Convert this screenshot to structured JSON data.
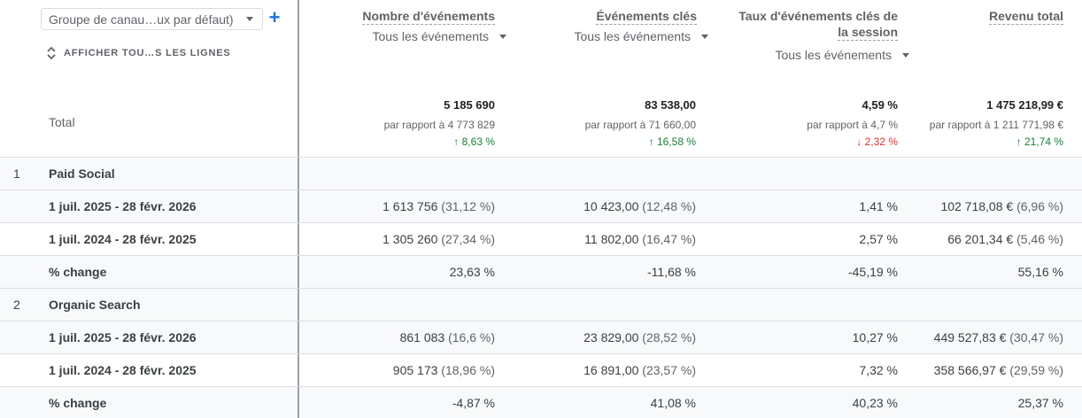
{
  "dimension": {
    "selected": "Groupe de canau…ux par défaut)",
    "show_all_label": "AFFICHER TOU…S LES LIGNES"
  },
  "metrics": [
    {
      "title": "Nombre d'événements",
      "title2": "",
      "filter": "Tous les événements"
    },
    {
      "title": "Événements clés",
      "title2": "",
      "filter": "Tous les événements"
    },
    {
      "title": "Taux d'événements clés de",
      "title2": "la session",
      "filter": "Tous les événements"
    },
    {
      "title": "Revenu total",
      "title2": "",
      "filter": ""
    }
  ],
  "total": {
    "label": "Total",
    "cells": [
      {
        "value": "5 185 690",
        "compare": "par rapport à 4 773 829",
        "delta": "↑ 8,63 %",
        "direction": "up"
      },
      {
        "value": "83 538,00",
        "compare": "par rapport à 71 660,00",
        "delta": "↑ 16,58 %",
        "direction": "up"
      },
      {
        "value": "4,59 %",
        "compare": "par rapport à 4,7 %",
        "delta": "↓ 2,32 %",
        "direction": "down"
      },
      {
        "value": "1 475 218,99 €",
        "compare": "par rapport à 1 211 771,98 €",
        "delta": "↑ 21,74 %",
        "direction": "up"
      }
    ]
  },
  "rows": [
    {
      "index": "1",
      "label": "Paid Social",
      "cells": []
    },
    {
      "index": "",
      "label": "1 juil. 2025 - 28 févr. 2026",
      "cells": [
        {
          "v": "1 613 756",
          "p": "(31,12 %)"
        },
        {
          "v": "10 423,00",
          "p": "(12,48 %)"
        },
        {
          "v": "1,41 %",
          "p": ""
        },
        {
          "v": "102 718,08 €",
          "p": "(6,96 %)"
        }
      ]
    },
    {
      "index": "",
      "label": "1 juil. 2024 - 28 févr. 2025",
      "cells": [
        {
          "v": "1 305 260",
          "p": "(27,34 %)"
        },
        {
          "v": "11 802,00",
          "p": "(16,47 %)"
        },
        {
          "v": "2,57 %",
          "p": ""
        },
        {
          "v": "66 201,34 €",
          "p": "(5,46 %)"
        }
      ]
    },
    {
      "index": "",
      "label": "% change",
      "cells": [
        {
          "v": "23,63 %",
          "p": ""
        },
        {
          "v": "-11,68 %",
          "p": ""
        },
        {
          "v": "-45,19 %",
          "p": ""
        },
        {
          "v": "55,16 %",
          "p": ""
        }
      ]
    },
    {
      "index": "2",
      "label": "Organic Search",
      "cells": []
    },
    {
      "index": "",
      "label": "1 juil. 2025 - 28 févr. 2026",
      "cells": [
        {
          "v": "861 083",
          "p": "(16,6 %)"
        },
        {
          "v": "23 829,00",
          "p": "(28,52 %)"
        },
        {
          "v": "10,27 %",
          "p": ""
        },
        {
          "v": "449 527,83 €",
          "p": "(30,47 %)"
        }
      ]
    },
    {
      "index": "",
      "label": "1 juil. 2024 - 28 févr. 2025",
      "cells": [
        {
          "v": "905 173",
          "p": "(18,96 %)"
        },
        {
          "v": "16 891,00",
          "p": "(23,57 %)"
        },
        {
          "v": "7,32 %",
          "p": ""
        },
        {
          "v": "358 566,97 €",
          "p": "(29,59 %)"
        }
      ]
    },
    {
      "index": "",
      "label": "% change",
      "cells": [
        {
          "v": "-4,87 %",
          "p": ""
        },
        {
          "v": "41,08 %",
          "p": ""
        },
        {
          "v": "40,23 %",
          "p": ""
        },
        {
          "v": "25,37 %",
          "p": ""
        }
      ]
    }
  ]
}
